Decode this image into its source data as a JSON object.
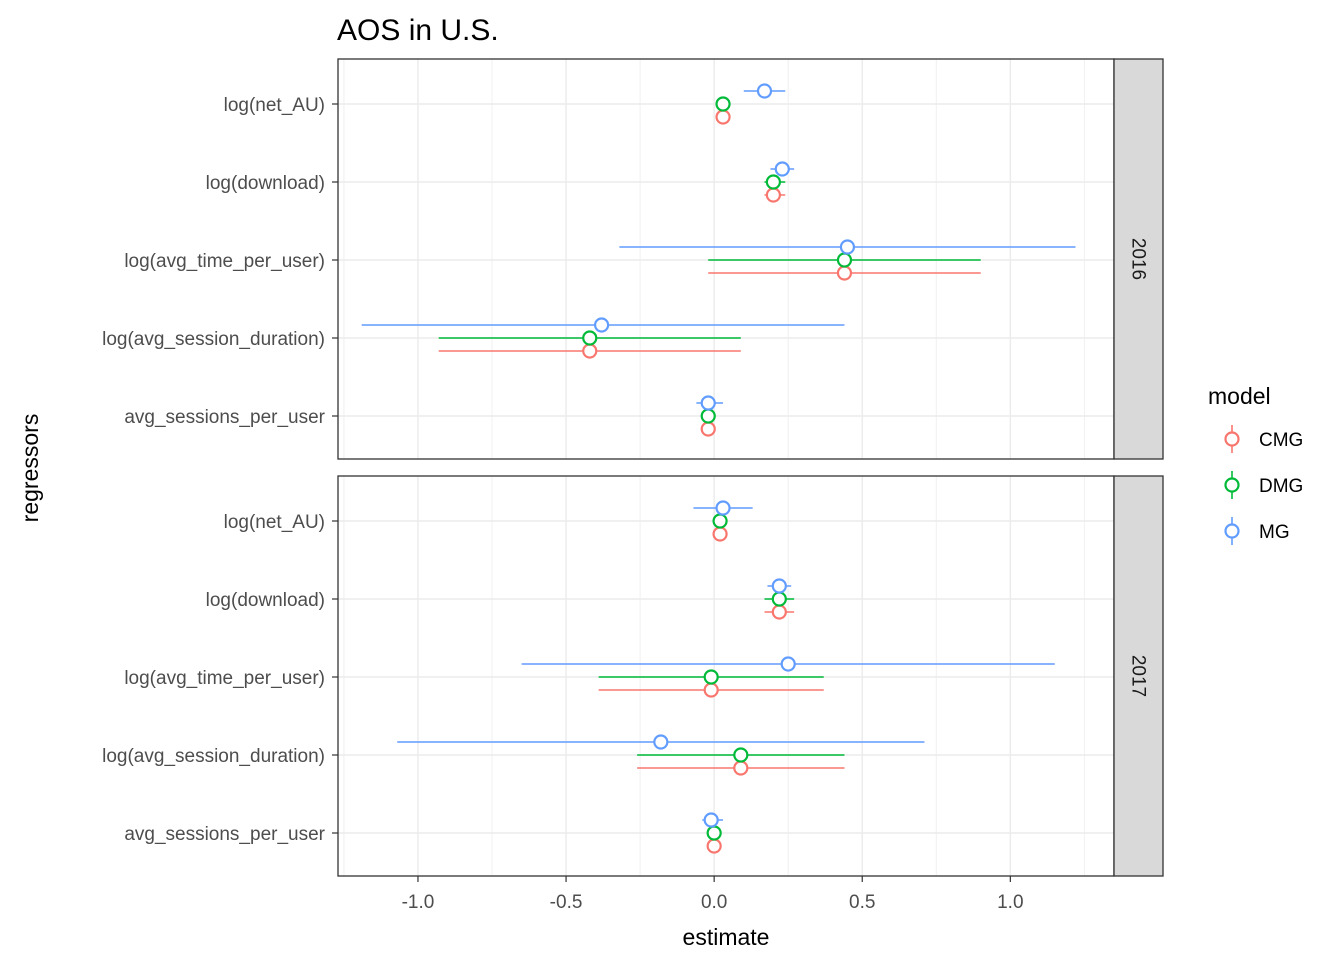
{
  "chart_data": {
    "type": "scatter",
    "title": "AOS in U.S.",
    "xlabel": "estimate",
    "ylabel": "regressors",
    "xlim": [
      -1.27,
      1.35
    ],
    "x_ticks": [
      -1.0,
      -0.5,
      0.0,
      0.5,
      1.0
    ],
    "x_tick_labels": [
      "-1.0",
      "-0.5",
      "0.0",
      "0.5",
      "1.0"
    ],
    "grid": true,
    "legend": {
      "title": "model",
      "position": "right",
      "entries": [
        "CMG",
        "DMG",
        "MG"
      ]
    },
    "categories": [
      "log(net_AU)",
      "log(download)",
      "log(avg_time_per_user)",
      "log(avg_session_duration)",
      "avg_sessions_per_user"
    ],
    "colors": {
      "CMG": "#F8766D",
      "DMG": "#00BA38",
      "MG": "#619CFF"
    },
    "panels": [
      {
        "label": "2016",
        "series": [
          {
            "name": "CMG",
            "estimate": [
              0.03,
              0.2,
              0.44,
              -0.42,
              -0.02
            ],
            "lower": [
              0.03,
              0.17,
              -0.02,
              -0.93,
              -0.02
            ],
            "upper": [
              0.03,
              0.24,
              0.9,
              0.09,
              -0.02
            ]
          },
          {
            "name": "DMG",
            "estimate": [
              0.03,
              0.2,
              0.44,
              -0.42,
              -0.02
            ],
            "lower": [
              0.03,
              0.17,
              -0.02,
              -0.93,
              -0.02
            ],
            "upper": [
              0.03,
              0.24,
              0.9,
              0.09,
              -0.02
            ]
          },
          {
            "name": "MG",
            "estimate": [
              0.17,
              0.23,
              0.45,
              -0.38,
              -0.02
            ],
            "lower": [
              0.1,
              0.19,
              -0.32,
              -1.19,
              -0.06
            ],
            "upper": [
              0.24,
              0.27,
              1.22,
              0.44,
              0.03
            ]
          }
        ]
      },
      {
        "label": "2017",
        "series": [
          {
            "name": "CMG",
            "estimate": [
              0.02,
              0.22,
              -0.01,
              0.09,
              0.0
            ],
            "lower": [
              0.02,
              0.17,
              -0.39,
              -0.26,
              0.0
            ],
            "upper": [
              0.02,
              0.27,
              0.37,
              0.44,
              0.0
            ]
          },
          {
            "name": "DMG",
            "estimate": [
              0.02,
              0.22,
              -0.01,
              0.09,
              0.0
            ],
            "lower": [
              0.02,
              0.17,
              -0.39,
              -0.26,
              0.0
            ],
            "upper": [
              0.02,
              0.27,
              0.37,
              0.44,
              0.0
            ]
          },
          {
            "name": "MG",
            "estimate": [
              0.03,
              0.22,
              0.25,
              -0.18,
              -0.01
            ],
            "lower": [
              -0.07,
              0.18,
              -0.65,
              -1.07,
              -0.04
            ],
            "upper": [
              0.13,
              0.26,
              1.15,
              0.71,
              0.03
            ]
          }
        ]
      }
    ]
  }
}
